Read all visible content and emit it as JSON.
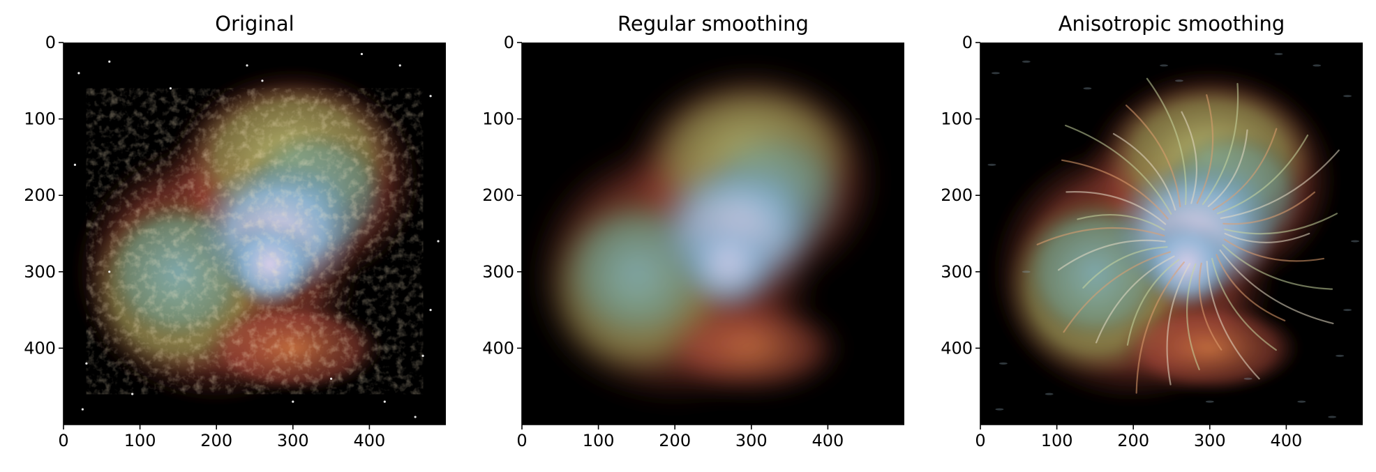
{
  "figure": {
    "panels": [
      {
        "id": "original",
        "title": "Original",
        "variant": "sharp",
        "x_ticks": [
          "0",
          "100",
          "200",
          "300",
          "400"
        ],
        "y_ticks": [
          "0",
          "100",
          "200",
          "300",
          "400"
        ],
        "x_tick_values": [
          0,
          100,
          200,
          300,
          400
        ],
        "y_tick_values": [
          0,
          100,
          200,
          300,
          400
        ]
      },
      {
        "id": "regular",
        "title": "Regular smoothing",
        "variant": "blurred",
        "x_ticks": [
          "0",
          "100",
          "200",
          "300",
          "400"
        ],
        "y_ticks": [
          "0",
          "100",
          "200",
          "300",
          "400"
        ],
        "x_tick_values": [
          0,
          100,
          200,
          300,
          400
        ],
        "y_tick_values": [
          0,
          100,
          200,
          300,
          400
        ]
      },
      {
        "id": "anisotropic",
        "title": "Anisotropic smoothing",
        "variant": "streaked",
        "x_ticks": [
          "0",
          "100",
          "200",
          "300",
          "400"
        ],
        "y_ticks": [
          "0",
          "100",
          "200",
          "300",
          "400"
        ],
        "x_tick_values": [
          0,
          100,
          200,
          300,
          400
        ],
        "y_tick_values": [
          0,
          100,
          200,
          300,
          400
        ]
      }
    ],
    "image_extent": [
      0,
      500
    ],
    "image_subject": "crab-nebula",
    "colors": {
      "background": "#000000",
      "nebula_blue": "#8fb6d8",
      "nebula_core": "#d9c9e6",
      "nebula_green": "#a8b86a",
      "nebula_orange": "#c8643a",
      "nebula_red": "#a8483a"
    }
  }
}
